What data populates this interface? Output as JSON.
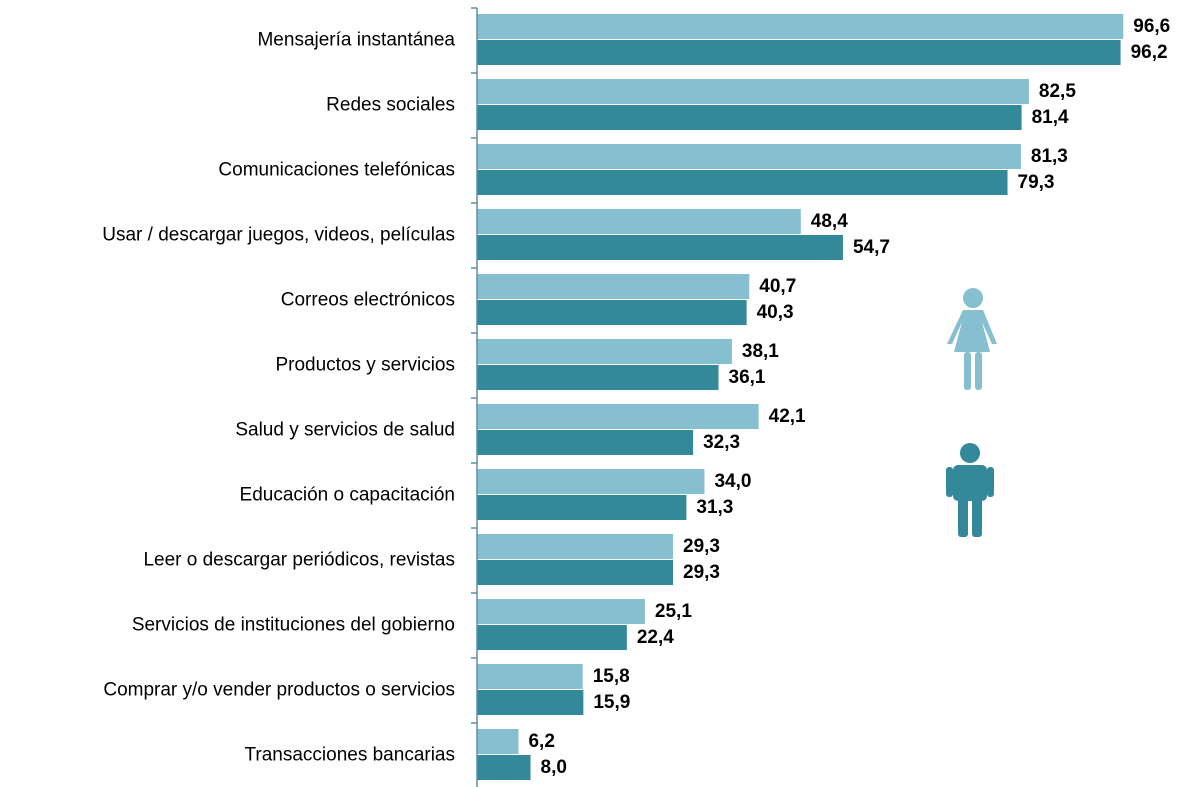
{
  "chart_data": {
    "type": "bar",
    "orientation": "horizontal",
    "categories": [
      "Mensajería instantánea",
      "Redes sociales",
      "Comunicaciones telefónicas",
      "Usar / descargar juegos, videos, películas",
      "Correos electrónicos",
      "Productos y servicios",
      "Salud y servicios de salud",
      "Educación o capacitación",
      "Leer o descargar periódicos, revistas",
      "Servicios de instituciones del gobierno",
      "Comprar y/o vender productos o servicios",
      "Transacciones bancarias"
    ],
    "series": [
      {
        "color": "#86bfcf",
        "values": [
          96.6,
          82.5,
          81.3,
          48.4,
          40.7,
          38.1,
          42.1,
          34.0,
          29.3,
          25.1,
          15.8,
          6.2
        ],
        "value_labels": [
          "96,6",
          "82,5",
          "81,3",
          "48,4",
          "40,7",
          "38,1",
          "42,1",
          "34,0",
          "29,3",
          "25,1",
          "15,8",
          "6,2"
        ]
      },
      {
        "color": "#338899",
        "values": [
          96.2,
          81.4,
          79.3,
          54.7,
          40.3,
          36.1,
          32.3,
          31.3,
          29.3,
          22.4,
          15.9,
          8.0
        ],
        "value_labels": [
          "96,2",
          "81,4",
          "79,3",
          "54,7",
          "40,3",
          "36,1",
          "32,3",
          "31,3",
          "29,3",
          "22,4",
          "15,9",
          "8,0"
        ]
      }
    ],
    "xlim": [
      0,
      100
    ]
  }
}
